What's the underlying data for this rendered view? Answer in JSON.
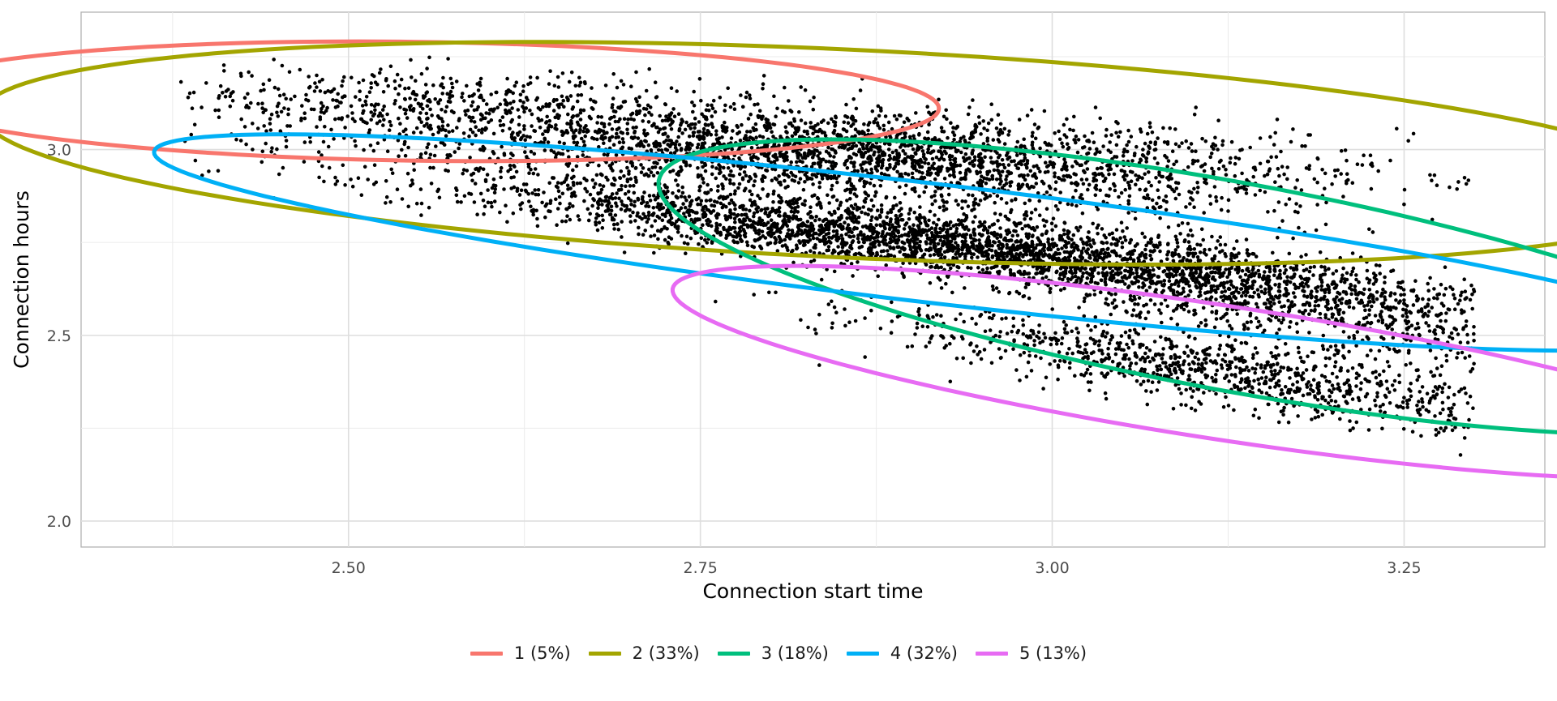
{
  "chart_data": {
    "type": "scatter",
    "title": "",
    "xlabel": "Connection start time",
    "ylabel": "Connection hours",
    "xlim": [
      2.31,
      3.35
    ],
    "ylim": [
      1.93,
      3.37
    ],
    "x_ticks": [
      2.5,
      2.75,
      3.0,
      3.25
    ],
    "x_tick_labels": [
      "2.50",
      "2.75",
      "3.00",
      "3.25"
    ],
    "y_ticks": [
      2.0,
      2.5,
      3.0
    ],
    "y_tick_labels": [
      "2.0",
      "2.5",
      "3.0"
    ],
    "grid": true,
    "legend_position": "bottom",
    "point_color": "#000000",
    "ellipses": [
      {
        "name": "1 (5%)",
        "color": "#F8766D",
        "center": [
          2.55,
          3.13
        ],
        "semi_major": 0.37,
        "semi_minor_y": 0.16,
        "angle_deg": -3
      },
      {
        "name": "2 (33%)",
        "color": "#A3A500",
        "center": [
          2.85,
          2.99
        ],
        "semi_major": 0.62,
        "semi_minor_y": 0.28,
        "angle_deg": -10
      },
      {
        "name": "3 (18%)",
        "color": "#00BF7D",
        "center": [
          3.13,
          2.63
        ],
        "semi_major": 0.5,
        "semi_minor_y": 0.28,
        "angle_deg": -35
      },
      {
        "name": "4 (32%)",
        "color": "#00B0F6",
        "center": [
          2.91,
          2.75
        ],
        "semi_major": 0.6,
        "semi_minor_y": 0.16,
        "angle_deg": -24
      },
      {
        "name": "5 (13%)",
        "color": "#E76BF3",
        "center": [
          3.12,
          2.4
        ],
        "semi_major": 0.45,
        "semi_minor_y": 0.18,
        "angle_deg": -30
      }
    ],
    "scatter_clusters": [
      {
        "center": [
          2.55,
          3.13
        ],
        "sd_major": 0.1,
        "sd_minor": 0.045,
        "angle_deg": -3,
        "n": 420
      },
      {
        "center": [
          2.85,
          2.99
        ],
        "sd_major": 0.17,
        "sd_minor": 0.06,
        "angle_deg": -10,
        "n": 2700
      },
      {
        "center": [
          3.13,
          2.63
        ],
        "sd_major": 0.14,
        "sd_minor": 0.07,
        "angle_deg": -35,
        "n": 1450
      },
      {
        "center": [
          2.91,
          2.75
        ],
        "sd_major": 0.17,
        "sd_minor": 0.04,
        "angle_deg": -24,
        "n": 2600
      },
      {
        "center": [
          3.12,
          2.4
        ],
        "sd_major": 0.12,
        "sd_minor": 0.045,
        "angle_deg": -30,
        "n": 1050
      }
    ],
    "x_range_clip": [
      2.38,
      3.3
    ],
    "y_range_clip": [
      2.01,
      3.29
    ]
  }
}
